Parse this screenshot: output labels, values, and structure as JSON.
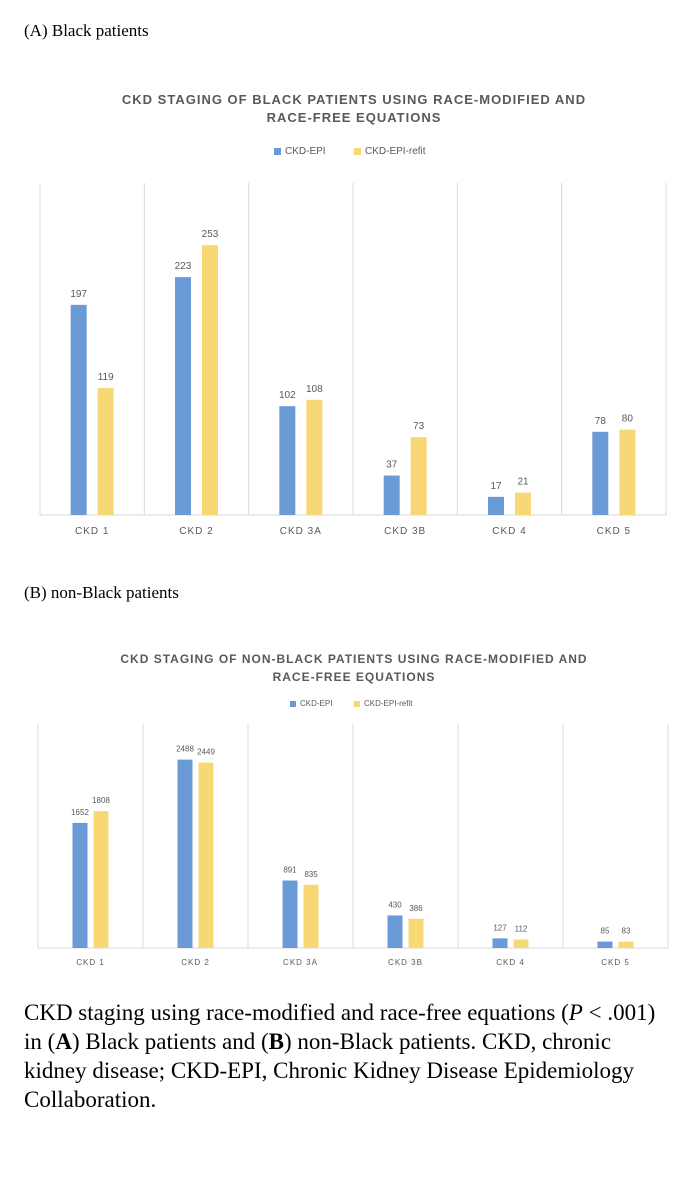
{
  "panel_a_label": "(A) Black patients",
  "panel_b_label": "(B) non-Black patients",
  "caption": {
    "part1": "CKD staging using race-modified and race-free equations (",
    "p_symbol": "P",
    "part2": " < .001) in (",
    "a": "A",
    "part3": ") Black patients and (",
    "b": "B",
    "part4": ") non-Black patients. CKD, chronic kidney disease; CKD-EPI, Chronic Kidney Disease Epidemiology Collaboration."
  },
  "colors": {
    "series1": "#6b9bd6",
    "series2": "#f7d874",
    "grid": "#d9d9d9",
    "text": "#595959"
  },
  "chart_data": [
    {
      "type": "bar",
      "title_lines": [
        "CKD STAGING OF BLACK PATIENTS USING RACE-MODIFIED AND",
        "RACE-FREE EQUATIONS"
      ],
      "categories": [
        "CKD 1",
        "CKD 2",
        "CKD 3A",
        "CKD 3B",
        "CKD 4",
        "CKD 5"
      ],
      "series": [
        {
          "name": "CKD-EPI",
          "values": [
            197,
            223,
            102,
            37,
            17,
            78
          ]
        },
        {
          "name": "CKD-EPI-refit",
          "values": [
            119,
            253,
            108,
            73,
            21,
            80
          ]
        }
      ],
      "ylim": [
        0,
        300
      ],
      "legend": "top-center",
      "grid": "vertical category separators"
    },
    {
      "type": "bar",
      "title_lines": [
        "CKD STAGING OF NON-BLACK PATIENTS USING RACE-MODIFIED AND",
        "RACE-FREE EQUATIONS"
      ],
      "categories": [
        "CKD 1",
        "CKD 2",
        "CKD 3A",
        "CKD 3B",
        "CKD 4",
        "CKD 5"
      ],
      "series": [
        {
          "name": "CKD-EPI",
          "values": [
            1652,
            2488,
            891,
            430,
            127,
            85
          ]
        },
        {
          "name": "CKD-EPI-refit",
          "values": [
            1808,
            2449,
            835,
            386,
            112,
            83
          ]
        }
      ],
      "ylim": [
        0,
        2800
      ],
      "legend": "top-center",
      "grid": "vertical category separators"
    }
  ]
}
